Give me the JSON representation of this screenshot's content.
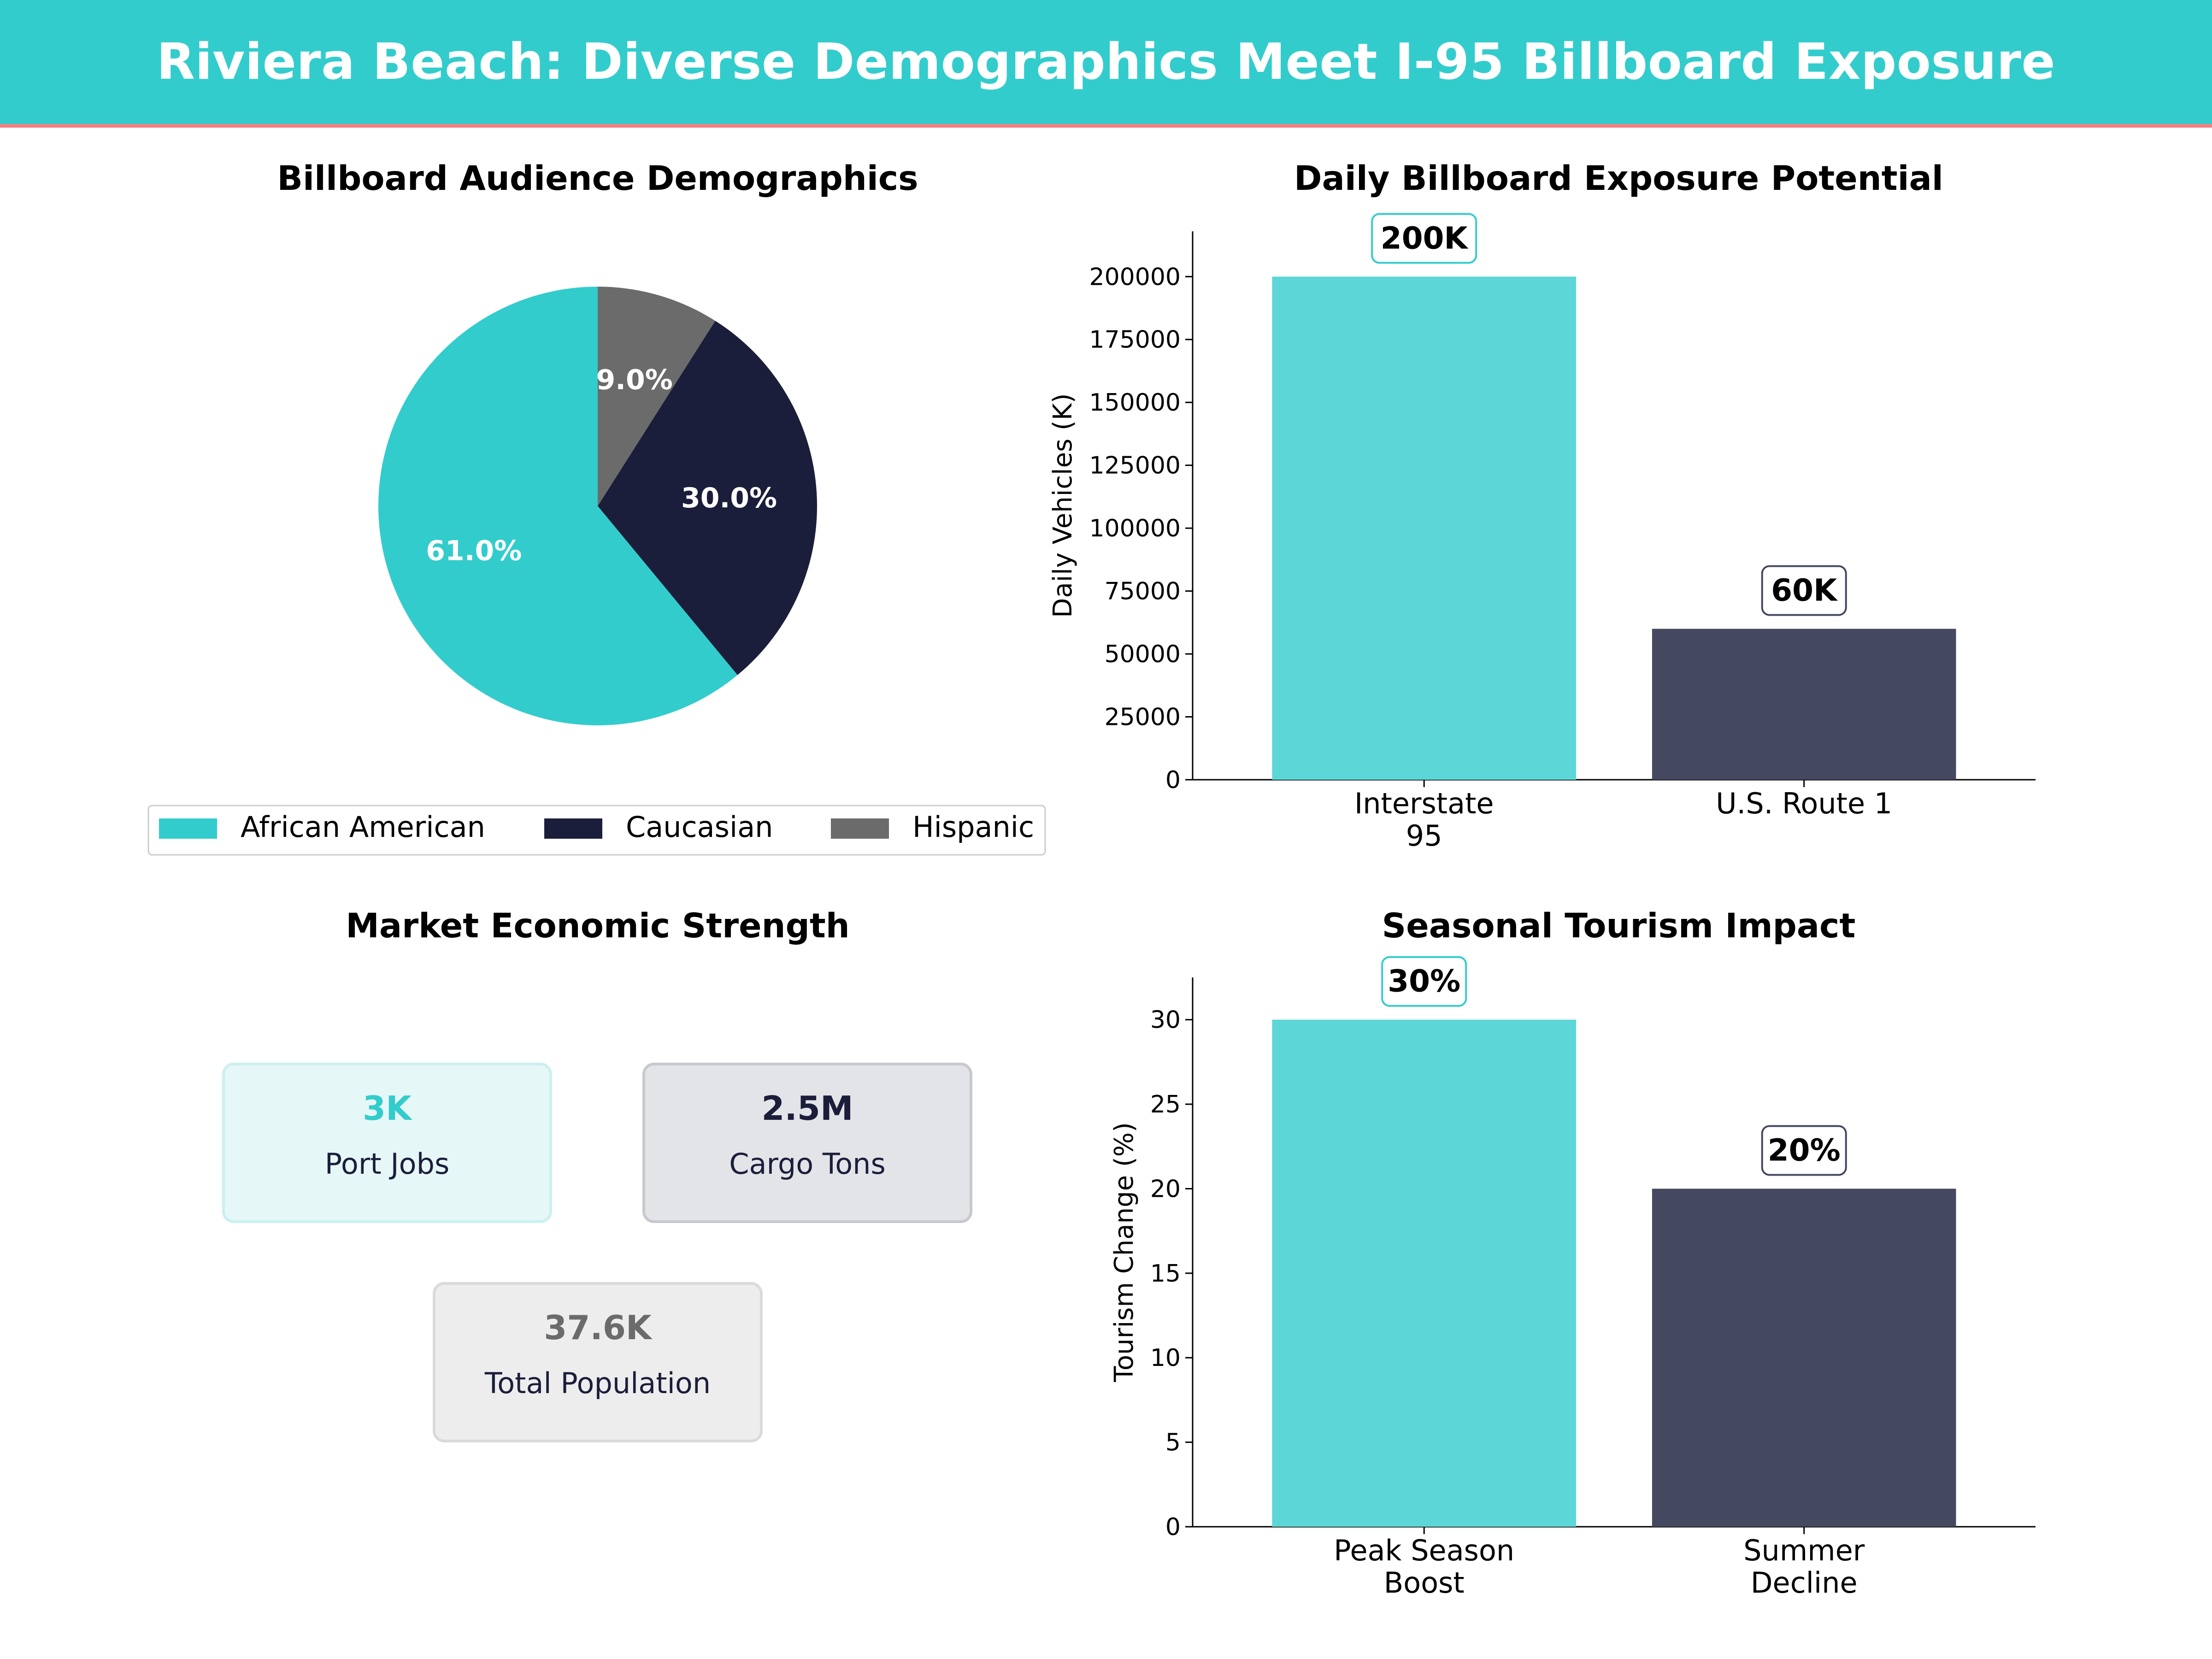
{
  "header": {
    "title": "Riviera Beach: Diverse Demographics Meet I-95 Billboard Exposure"
  },
  "colors": {
    "teal": "#33CCCC",
    "navy": "#1B1E3A",
    "gray": "#6B6B6B",
    "accent": "#F08080"
  },
  "chart_data": [
    {
      "type": "pie",
      "title": "Billboard Audience Demographics",
      "labels": [
        "African American",
        "Caucasian",
        "Hispanic"
      ],
      "values": [
        61.0,
        30.0,
        9.0
      ],
      "display_labels": [
        "61.0%",
        "30.0%",
        "9.0%"
      ],
      "colors": [
        "#33CCCC",
        "#1B1E3A",
        "#6B6B6B"
      ],
      "legend": "bottom"
    },
    {
      "type": "bar",
      "title": "Daily Billboard Exposure Potential",
      "categories": [
        [
          "Interstate",
          "95"
        ],
        [
          "U.S. Route 1"
        ]
      ],
      "values": [
        200000,
        60000
      ],
      "value_labels": [
        "200K",
        "60K"
      ],
      "ylabel": "Daily Vehicles (K)",
      "ylim": [
        0,
        218000
      ],
      "yticks": [
        0,
        25000,
        50000,
        75000,
        100000,
        125000,
        150000,
        175000,
        200000
      ],
      "colors": [
        "#5CD6D6",
        "#444960"
      ],
      "label_borders": [
        "#33CCCC",
        "#444960"
      ]
    },
    {
      "type": "table",
      "title": "Market Economic Strength",
      "cards": [
        {
          "value": "3K",
          "label": "Port Jobs",
          "value_color": "#33CCCC",
          "bg": "#E6F7F7",
          "border": "#CCF0F0"
        },
        {
          "value": "2.5M",
          "label": "Cargo Tons",
          "value_color": "#1B1E3A",
          "bg": "#E3E4E8",
          "border": "#C8C9CE"
        },
        {
          "value": "37.6K",
          "label": "Total Population",
          "value_color": "#6B6B6B",
          "bg": "#EDEDED",
          "border": "#DADADA"
        }
      ]
    },
    {
      "type": "bar",
      "title": "Seasonal Tourism Impact",
      "categories": [
        [
          "Peak Season",
          "Boost"
        ],
        [
          "Summer",
          "Decline"
        ]
      ],
      "values": [
        30,
        20
      ],
      "value_labels": [
        "30%",
        "20%"
      ],
      "ylabel": "Tourism Change (%)",
      "ylim": [
        0,
        32.5
      ],
      "yticks": [
        0,
        5,
        10,
        15,
        20,
        25,
        30
      ],
      "colors": [
        "#5CD6D6",
        "#444960"
      ],
      "label_borders": [
        "#33CCCC",
        "#444960"
      ]
    }
  ]
}
